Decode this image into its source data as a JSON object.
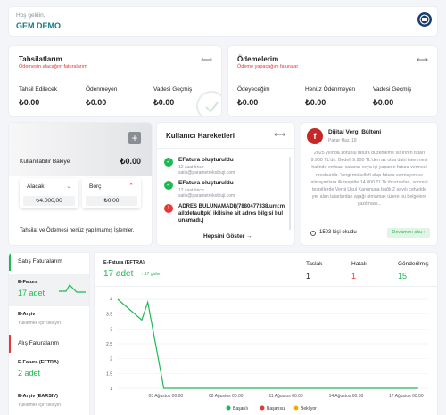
{
  "header": {
    "greeting": "Hoş geldin,",
    "company": "GEM DEMO"
  },
  "receivables": {
    "title": "Tahsilatlarım",
    "subtitle": "Ödemesin alacağım faturalarım",
    "labels": [
      "Tahsil Edilecek",
      "Ödenmeyen",
      "Vadesi Geçmiş"
    ],
    "values": [
      "₺0.00",
      "₺0.00",
      "₺0.00"
    ]
  },
  "payables": {
    "title": "Ödemelerim",
    "subtitle": "Ödeme yapacağım faturalar",
    "labels": [
      "Ödeyeceğim",
      "Henüz Ödenmeyen",
      "Vadesi Geçmiş"
    ],
    "values": [
      "₺0.00",
      "₺0.00",
      "₺0.00"
    ]
  },
  "balance": {
    "label": "Kullanılabilir Bakiye",
    "value": "₺0.00",
    "add": "+",
    "alacak_label": "Alacak",
    "alacak_value": "₺4.000,00",
    "borc_label": "Borç",
    "borc_value": "₺0,00",
    "note": "Tahsilat ve Ödemesi henüz yapılmamış İşlemler."
  },
  "activity": {
    "title": "Kullanıcı Hareketleri",
    "items": [
      {
        "title": "EFatura oluşturuldu",
        "time": "12 saat önce",
        "email": "satis@parametrekobiuji.com"
      },
      {
        "title": "EFatura oluşturuldu",
        "time": "12 saat önce",
        "email": "satis@parametrekobiuji.com"
      },
      {
        "title": "ADRES BULUNAMADI|(7880477338,urn:mail:defaultpk) ikilisine ait adres bilgisi bulunamadı.)",
        "time": "",
        "email": ""
      }
    ],
    "show_all": "Hepsini Göster →"
  },
  "bulletin": {
    "title": "Dijital Vergi Bülteni",
    "date": "Pazar Haz. 18",
    "text": "2025 yılında zorunlu fatura düzenleme sınırının tutarı 9.900 TL'dir. Bedeli 9.900 TL'den az olsa dahi istenmesi halinde embazı satanın veya işi yapanın fatura vermesi mecburidir. Vergi mükellefi olup fatura vermeyen ve almayanlara ilk tespitte 14.000 TL'lik ibrazsıdan, sonraki tespitlerde Vergi Usul Kanununa bağlı 2 sayılı cetvelde yer alan tutarlardan aşağı olmamak üzere bu belgelere yazılması...",
    "reads": "1503 kişi okudu",
    "cta": "Devamını oku ›"
  },
  "sidebar": {
    "sales_title": "Satış Faturalarım",
    "efatura_label": "E-Fatura",
    "efatura_count": "17 adet",
    "earsiv_label": "E-Arşiv",
    "earsiv_sub": "Yüklemek için tıklayın",
    "purchase_title": "Alış Faturalarım",
    "efatura_in_label": "E-Fatura (EFTRA)",
    "efatura_in_count": "2 adet",
    "earsiv_in_label": "E-Arşiv (EARSIV)",
    "earsiv_in_sub": "Yüklemek için tıklayın"
  },
  "summary": {
    "label": "E-Fatura (EFTRA)",
    "count": "17 adet",
    "delta": "↑ 17 giden",
    "stats": [
      {
        "label": "Taslak",
        "value": "1"
      },
      {
        "label": "Hatalı",
        "value": "1"
      },
      {
        "label": "Gönderilmiş",
        "value": "15"
      }
    ]
  },
  "colors": {
    "accent": "#0e7c86",
    "success": "#1db954",
    "danger": "#e53935",
    "warning": "#f0b000"
  },
  "chart_data": {
    "type": "line",
    "title": "",
    "xlabel": "",
    "ylabel": "",
    "ylim": [
      1,
      4
    ],
    "yticks": [
      1,
      1.5,
      2,
      2.5,
      3,
      3.5,
      4
    ],
    "x_tick_labels": [
      "05 Ağustos 00:00",
      "08 Ağustos 00:00",
      "11 Ağustos 00:00",
      "14 Ağustos 00:00",
      "17 Ağustos 00:00"
    ],
    "series": [
      {
        "name": "Başarılı",
        "color": "#1db954",
        "points": [
          [
            0,
            4
          ],
          [
            1.2,
            3.3
          ],
          [
            1.5,
            3.9
          ],
          [
            2.3,
            1
          ],
          [
            4,
            1
          ],
          [
            9,
            1
          ],
          [
            15,
            1
          ]
        ]
      },
      {
        "name": "Başarısız",
        "color": "#e53935",
        "points": []
      },
      {
        "name": "Bekliyor",
        "color": "#f0b000",
        "points": []
      }
    ],
    "x_tick_positions": [
      2.4,
      5.4,
      8.4,
      11.4,
      14.4
    ],
    "xlim": [
      0,
      15.5
    ],
    "grid": true,
    "legend": "bottom"
  }
}
